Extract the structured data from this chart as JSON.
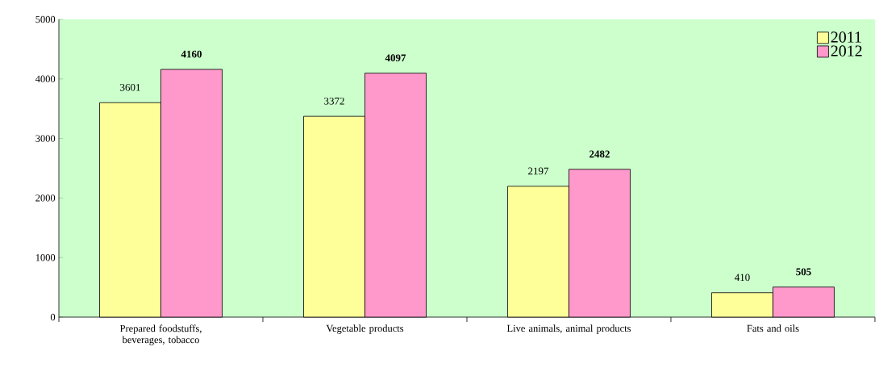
{
  "chart_data": {
    "type": "bar",
    "categories": [
      "Prepared foodstuffs, beverages, tobacco",
      "Vegetable products",
      "Live animals, animal products",
      "Fats and oils"
    ],
    "series": [
      {
        "name": "2011",
        "color": "#ffff99",
        "values": [
          3601,
          3372,
          2197,
          410
        ]
      },
      {
        "name": "2012",
        "color": "#ff99cc",
        "values": [
          4160,
          4097,
          2482,
          505
        ]
      }
    ],
    "ylim": [
      0,
      5000
    ],
    "yticks": [
      0,
      1000,
      2000,
      3000,
      4000,
      5000
    ],
    "data_labels": true,
    "legend": "top right",
    "grid": false
  }
}
